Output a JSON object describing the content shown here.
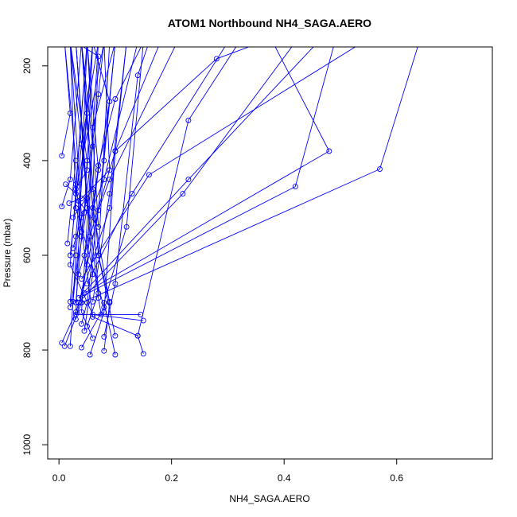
{
  "chart_data": {
    "type": "line",
    "title": "ATOM1 Northbound NH4_SAGA.AERO",
    "xlabel": "NH4_SAGA.AERO",
    "ylabel": "Pressure (mbar)",
    "xlim": [
      -0.02,
      0.77
    ],
    "ylim": [
      1030,
      160
    ],
    "y_reversed": true,
    "x_ticks": [
      0.0,
      0.2,
      0.4,
      0.6
    ],
    "x_tick_labels": [
      "0.0",
      "0.2",
      "0.4",
      "0.6"
    ],
    "y_ticks": [
      200,
      400,
      600,
      800,
      1000
    ],
    "y_tick_labels": [
      "200",
      "400",
      "600",
      "800",
      "1000"
    ],
    "grid": false,
    "legend": "none",
    "series_color": "#0000ff",
    "series": [
      {
        "x": [
          0.005,
          0.03,
          0.09,
          0.12
        ],
        "y": [
          785,
          720,
          500,
          150
        ]
      },
      {
        "x": [
          0.01,
          0.04,
          0.07,
          0.05
        ],
        "y": [
          792,
          700,
          420,
          150
        ]
      },
      {
        "x": [
          0.02,
          0.03,
          0.05,
          0.06
        ],
        "y": [
          792,
          600,
          300,
          150
        ]
      },
      {
        "x": [
          0.055,
          0.08,
          0.1,
          0.28,
          0.36
        ],
        "y": [
          810,
          720,
          380,
          185,
          150
        ]
      },
      {
        "x": [
          0.08,
          0.09,
          0.06,
          0.04
        ],
        "y": [
          802,
          700,
          500,
          150
        ]
      },
      {
        "x": [
          0.1,
          0.08,
          0.12,
          0.15
        ],
        "y": [
          810,
          700,
          540,
          150
        ]
      },
      {
        "x": [
          0.15,
          0.14,
          0.23,
          0.32
        ],
        "y": [
          808,
          770,
          315,
          150
        ]
      },
      {
        "x": [
          0.14,
          0.06,
          0.03,
          0.05
        ],
        "y": [
          770,
          730,
          450,
          150
        ]
      },
      {
        "x": [
          0.1,
          0.07,
          0.04
        ],
        "y": [
          770,
          600,
          150
        ]
      },
      {
        "x": [
          0.06,
          0.04,
          0.07
        ],
        "y": [
          775,
          720,
          150
        ]
      },
      {
        "x": [
          0.08,
          0.1,
          0.14,
          0.16
        ],
        "y": [
          772,
          660,
          220,
          150
        ]
      },
      {
        "x": [
          0.15,
          0.06,
          0.02,
          0.05
        ],
        "y": [
          738,
          725,
          620,
          150
        ]
      },
      {
        "x": [
          0.145,
          0.03,
          0.05
        ],
        "y": [
          725,
          725,
          150
        ]
      },
      {
        "x": [
          0.04,
          0.08,
          0.03,
          0.02
        ],
        "y": [
          795,
          710,
          500,
          150
        ]
      },
      {
        "x": [
          0.045,
          0.06,
          0.03
        ],
        "y": [
          760,
          640,
          150
        ]
      },
      {
        "x": [
          0.05,
          0.07,
          0.04
        ],
        "y": [
          750,
          680,
          150
        ]
      },
      {
        "x": [
          0.04,
          0.05,
          0.08,
          0.1
        ],
        "y": [
          745,
          700,
          400,
          150
        ]
      },
      {
        "x": [
          0.03,
          0.04,
          0.07,
          0.08
        ],
        "y": [
          700,
          560,
          260,
          150
        ]
      },
      {
        "x": [
          0.025,
          0.04,
          0.02
        ],
        "y": [
          698,
          520,
          150
        ]
      },
      {
        "x": [
          0.06,
          0.09,
          0.12
        ],
        "y": [
          698,
          470,
          150
        ]
      },
      {
        "x": [
          0.09,
          0.07,
          0.09
        ],
        "y": [
          698,
          600,
          150
        ]
      },
      {
        "x": [
          0.02,
          0.05,
          0.03
        ],
        "y": [
          710,
          500,
          150
        ]
      },
      {
        "x": [
          0.03,
          0.07,
          0.1
        ],
        "y": [
          735,
          505,
          150
        ]
      },
      {
        "x": [
          0.035,
          0.22,
          0.42
        ],
        "y": [
          700,
          470,
          150
        ]
      },
      {
        "x": [
          0.035,
          0.23,
          0.46
        ],
        "y": [
          690,
          440,
          150
        ]
      },
      {
        "x": [
          0.035,
          0.42,
          0.49,
          0.54
        ],
        "y": [
          690,
          455,
          150,
          150
        ]
      },
      {
        "x": [
          0.04,
          0.57,
          0.64
        ],
        "y": [
          700,
          418,
          150
        ]
      },
      {
        "x": [
          0.045,
          0.48,
          0.38,
          0.36
        ],
        "y": [
          680,
          380,
          150,
          150
        ]
      },
      {
        "x": [
          0.05,
          0.13,
          0.3
        ],
        "y": [
          660,
          470,
          150
        ]
      },
      {
        "x": [
          0.04,
          0.16,
          0.54
        ],
        "y": [
          650,
          430,
          150
        ]
      },
      {
        "x": [
          0.035,
          0.1,
          0.18
        ],
        "y": [
          640,
          380,
          150
        ]
      },
      {
        "x": [
          0.05,
          0.06,
          0.1
        ],
        "y": [
          620,
          330,
          150
        ]
      },
      {
        "x": [
          0.045,
          0.09,
          0.06
        ],
        "y": [
          600,
          275,
          150
        ]
      },
      {
        "x": [
          0.015,
          0.03,
          0.01
        ],
        "y": [
          575,
          400,
          150
        ]
      },
      {
        "x": [
          0.02,
          0.04,
          0.07
        ],
        "y": [
          600,
          365,
          150
        ]
      },
      {
        "x": [
          0.025,
          0.05,
          0.03
        ],
        "y": [
          585,
          480,
          150
        ]
      },
      {
        "x": [
          0.005,
          0.02,
          0.04
        ],
        "y": [
          497,
          440,
          150
        ]
      },
      {
        "x": [
          0.005,
          0.02,
          0.01
        ],
        "y": [
          390,
          300,
          150
        ]
      },
      {
        "x": [
          0.012,
          0.03,
          0.08
        ],
        "y": [
          450,
          470,
          150
        ]
      },
      {
        "x": [
          0.018,
          0.04,
          0.09,
          0.08
        ],
        "y": [
          490,
          480,
          420,
          150
        ]
      },
      {
        "x": [
          0.025,
          0.06,
          0.07,
          0.03
        ],
        "y": [
          520,
          460,
          180,
          150
        ]
      },
      {
        "x": [
          0.03,
          0.05,
          0.06
        ],
        "y": [
          460,
          420,
          150
        ]
      },
      {
        "x": [
          0.06,
          0.08,
          0.14
        ],
        "y": [
          500,
          440,
          150
        ]
      },
      {
        "x": [
          0.07,
          0.09,
          0.21
        ],
        "y": [
          505,
          440,
          150
        ]
      },
      {
        "x": [
          0.035,
          0.07,
          0.05
        ],
        "y": [
          485,
          540,
          150
        ]
      },
      {
        "x": [
          0.04,
          0.06,
          0.04
        ],
        "y": [
          550,
          370,
          150
        ]
      },
      {
        "x": [
          0.045,
          0.05,
          0.02
        ],
        "y": [
          510,
          400,
          150
        ]
      },
      {
        "x": [
          0.055,
          0.07,
          0.1,
          0.15
        ],
        "y": [
          560,
          410,
          270,
          150
        ]
      },
      {
        "x": [
          0.02,
          0.03,
          0.06
        ],
        "y": [
          698,
          560,
          150
        ]
      },
      {
        "x": [
          0.075,
          0.07,
          0.02
        ],
        "y": [
          725,
          690,
          150
        ]
      }
    ]
  }
}
